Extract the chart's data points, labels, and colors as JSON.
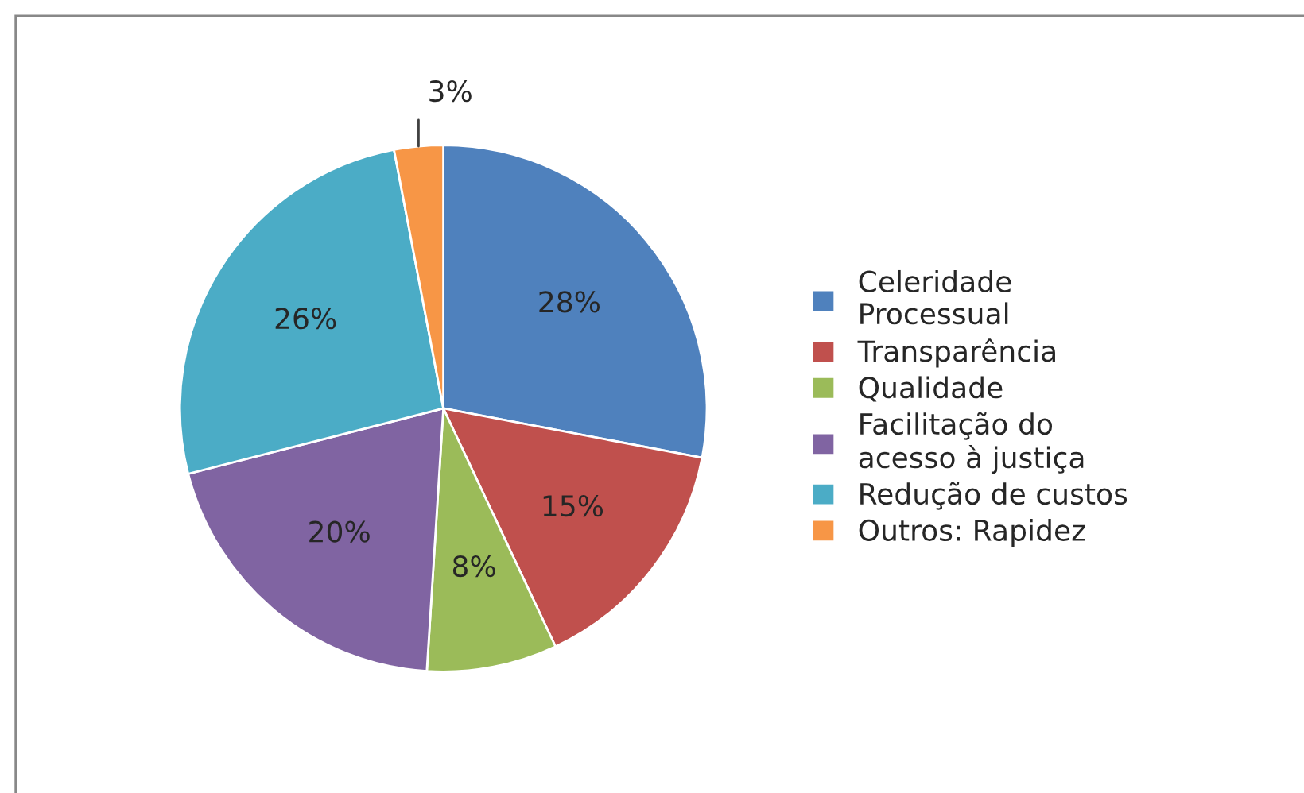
{
  "chart_data": {
    "type": "pie",
    "categories": [
      "Celeridade\nProcessual",
      "Transparência",
      "Qualidade",
      "Facilitação do\nacesso à justiça",
      "Redução de custos",
      "Outros: Rapidez"
    ],
    "values": [
      28,
      15,
      8,
      20,
      26,
      3
    ],
    "colors": [
      "#4f81bd",
      "#c0504d",
      "#9bbb59",
      "#8064a2",
      "#4bacc6",
      "#f79646"
    ],
    "value_labels": [
      "28%",
      "15%",
      "8%",
      "20%",
      "26%",
      "3%"
    ],
    "legend": "right"
  }
}
